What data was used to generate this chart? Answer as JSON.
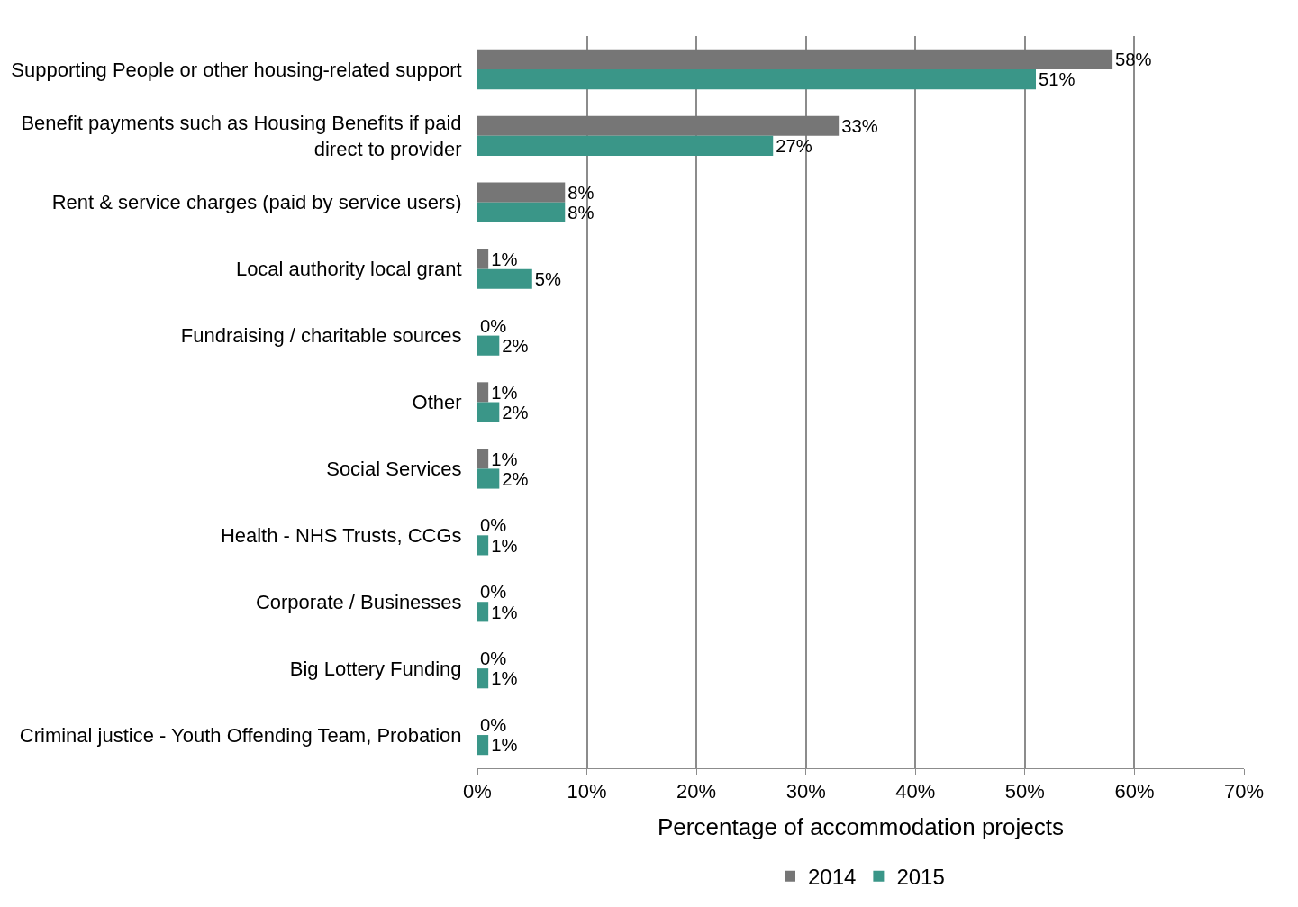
{
  "chart_data": {
    "type": "bar",
    "orientation": "horizontal",
    "xlabel": "Percentage of accommodation projects",
    "categories": [
      "Supporting People or other housing-related support",
      "Benefit payments such as Housing Benefits if paid direct to provider",
      "Rent & service charges (paid by service users)",
      "Local authority local grant",
      "Fundraising / charitable sources",
      "Other",
      "Social Services",
      "Health - NHS Trusts, CCGs",
      "Corporate / Businesses",
      "Big Lottery Funding",
      "Criminal justice - Youth Offending Team, Probation"
    ],
    "series": [
      {
        "name": "2014",
        "color": "#767676",
        "values": [
          58,
          33,
          8,
          1,
          0,
          1,
          1,
          0,
          0,
          0,
          0
        ],
        "value_labels": [
          "58%",
          "33%",
          "8%",
          "1%",
          "0%",
          "1%",
          "1%",
          "0%",
          "0%",
          "0%",
          "0%"
        ]
      },
      {
        "name": "2015",
        "color": "#3a9688",
        "values": [
          51,
          27,
          8,
          5,
          2,
          2,
          2,
          1,
          1,
          1,
          1
        ],
        "value_labels": [
          "51%",
          "27%",
          "8%",
          "5%",
          "2%",
          "2%",
          "2%",
          "1%",
          "1%",
          "1%",
          "1%"
        ]
      }
    ],
    "xlim": [
      0,
      70
    ],
    "xticks": [
      {
        "value": 0,
        "label": "0%"
      },
      {
        "value": 10,
        "label": "10%"
      },
      {
        "value": 20,
        "label": "20%"
      },
      {
        "value": 30,
        "label": "30%"
      },
      {
        "value": 40,
        "label": "40%"
      },
      {
        "value": 50,
        "label": "50%"
      },
      {
        "value": 60,
        "label": "60%"
      },
      {
        "value": 70,
        "label": "70%"
      }
    ],
    "grid": "x",
    "legend": "bottom"
  }
}
